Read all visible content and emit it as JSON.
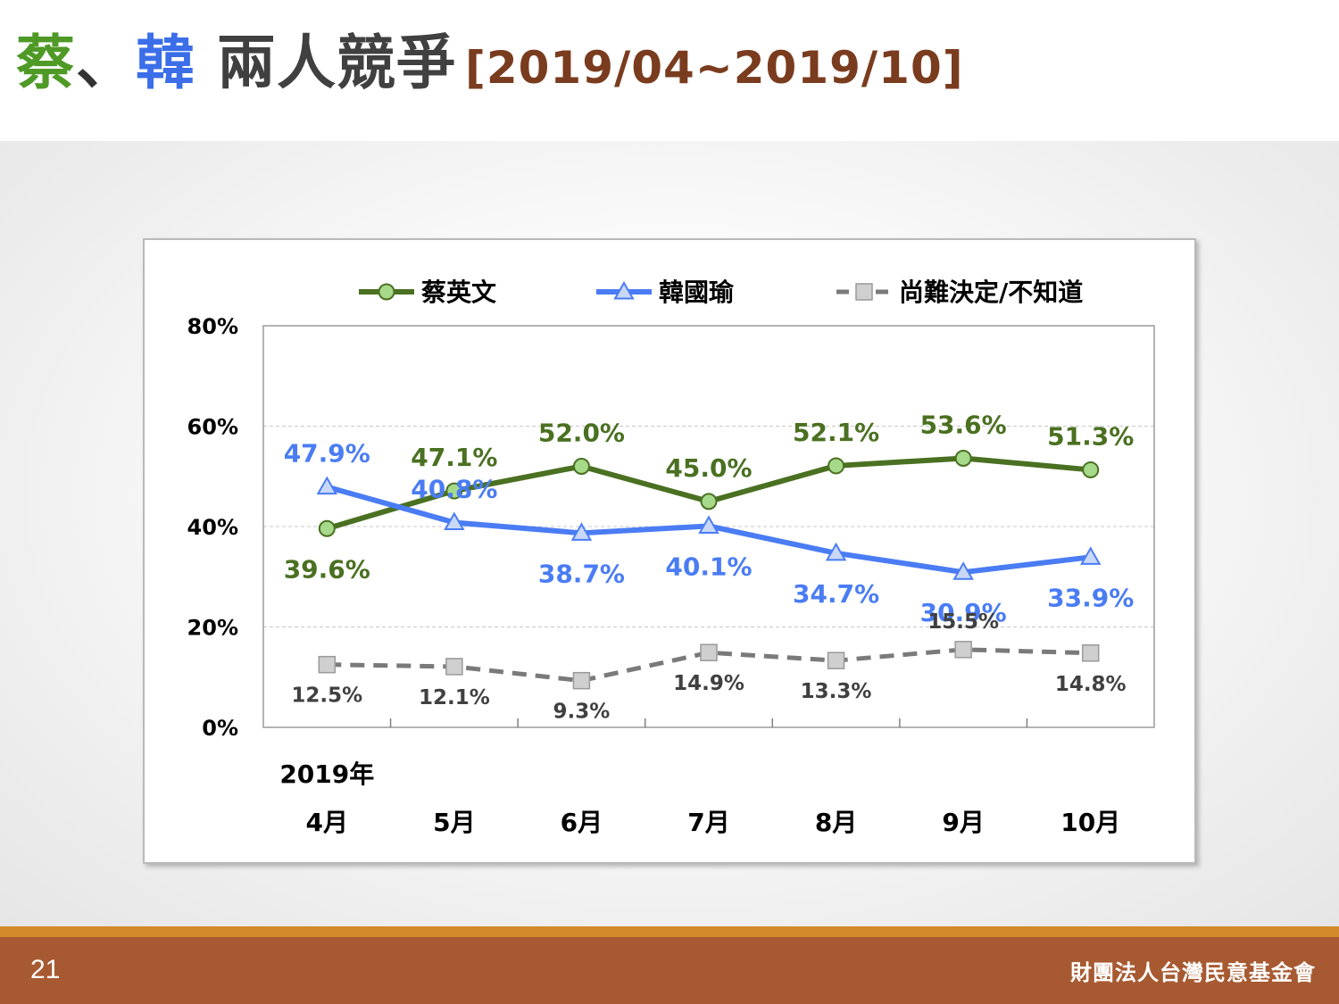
{
  "slide": {
    "title": {
      "part1": "蔡",
      "part2": "、",
      "part3": "韓",
      "part4": " 兩人競爭",
      "part5": "[2019/04~2019/10]"
    },
    "page_number": "21",
    "organization": "財團法人台灣民意基金會"
  },
  "colors": {
    "tsai": "#4a7021",
    "tsai_marker": "#a6d98a",
    "han": "#4a7cf4",
    "han_marker": "#c9d8f7",
    "undecided": "#7a7a7a",
    "undecided_marker": "#cfcfcf",
    "title_green": "#4f9a27",
    "title_blue": "#3b6ee8",
    "title_brown": "#7a3c1e",
    "footer": "#a75a32"
  },
  "chart_data": {
    "type": "line",
    "year_label": "2019年",
    "categories": [
      "4月",
      "5月",
      "6月",
      "7月",
      "8月",
      "9月",
      "10月"
    ],
    "ylim": [
      0,
      80
    ],
    "y_ticks": [
      "0%",
      "20%",
      "40%",
      "60%",
      "80%"
    ],
    "grid": true,
    "legend_position": "top",
    "series": [
      {
        "name": "蔡英文",
        "values": [
          39.6,
          47.1,
          52.0,
          45.0,
          52.1,
          53.6,
          51.3
        ],
        "labels": [
          "39.6%",
          "47.1%",
          "52.0%",
          "45.0%",
          "52.1%",
          "53.6%",
          "51.3%"
        ],
        "marker": "circle",
        "dashed": false
      },
      {
        "name": "韓國瑜",
        "values": [
          47.9,
          40.8,
          38.7,
          40.1,
          34.7,
          30.9,
          33.9
        ],
        "labels": [
          "47.9%",
          "40.8%",
          "38.7%",
          "40.1%",
          "34.7%",
          "30.9%",
          "33.9%"
        ],
        "marker": "triangle",
        "dashed": false
      },
      {
        "name": "尚難決定/不知道",
        "values": [
          12.5,
          12.1,
          9.3,
          14.9,
          13.3,
          15.5,
          14.8
        ],
        "labels": [
          "12.5%",
          "12.1%",
          "9.3%",
          "14.9%",
          "13.3%",
          "15.5%",
          "14.8%"
        ],
        "marker": "square",
        "dashed": true
      }
    ]
  }
}
